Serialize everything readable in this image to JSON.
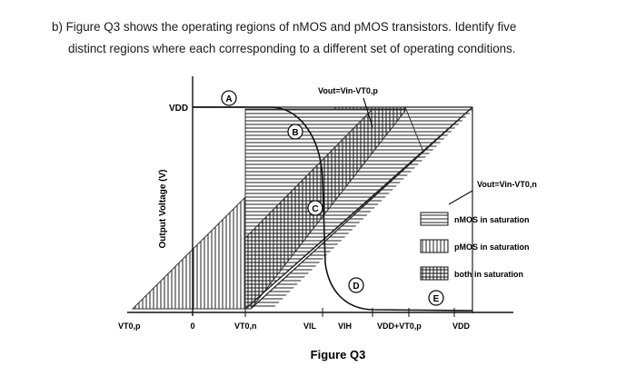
{
  "question": {
    "line1": "b)  Figure Q3 shows the operating regions of nMOS and pMOS transistors. Identify five",
    "line2": "distinct regions where each corresponding to a different set of operating conditions."
  },
  "figure": {
    "ylabel": "Output Voltage (V)",
    "y_tick": "VDD",
    "x_ticks": [
      "VT0,p",
      "0",
      "VT0,n",
      "VIL",
      "VIH",
      "VDD+VT0,p",
      "VDD"
    ],
    "region_labels": [
      "A",
      "B",
      "C",
      "D",
      "E"
    ],
    "line_labels": {
      "top": "Vout=Vin-VT0,p",
      "right": "Vout=Vin-VT0,n"
    },
    "legend": [
      {
        "label": "nMOS in saturation",
        "pattern": "horizontal"
      },
      {
        "label": "pMOS in saturation",
        "pattern": "vertical"
      },
      {
        "label": "both in saturation",
        "pattern": "cross"
      }
    ],
    "caption": "Figure Q3"
  }
}
